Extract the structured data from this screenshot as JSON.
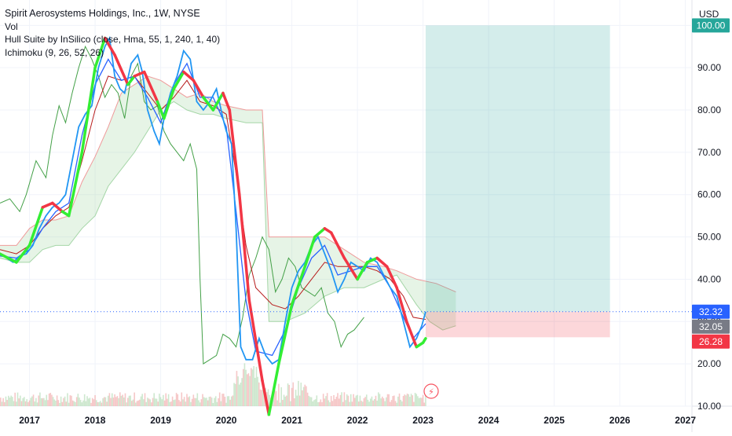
{
  "legend": {
    "title": "Spirit Aerosystems Holdings, Inc., 1W, NYSE",
    "volume": "Vol",
    "hull": "Hull Suite by InSilico (close, Hma, 55, 1, 240, 1, 40)",
    "ichimoku": "Ichimoku (9, 26, 52, 26)"
  },
  "chart_data": {
    "type": "line",
    "currency": "USD",
    "x_range": [
      2016.55,
      2027.1
    ],
    "y_range": [
      10,
      106
    ],
    "x_ticks": [
      "2017",
      "2018",
      "2019",
      "2020",
      "2021",
      "2022",
      "2023",
      "2024",
      "2025",
      "2026",
      "2027"
    ],
    "y_ticks": [
      10,
      20,
      30,
      40,
      50,
      60,
      70,
      80,
      90,
      100
    ],
    "y_tick_labels": [
      "10.00",
      "20.00",
      "30.00",
      "40.00",
      "50.00",
      "60.00",
      "70.00",
      "80.00",
      "90.00",
      "100.00"
    ],
    "colors": {
      "price": "#2196f3",
      "tenkan": "#2962ff",
      "kijun": "#b71c1c",
      "chikou": "#43a047",
      "hull_up": "#33ee33",
      "hull_down": "#f23645",
      "cloud_bull": "#a5d6a7",
      "cloud_bear": "#ef9a9a",
      "profit_zone": "#26a69a",
      "loss_zone": "#f23645",
      "label_green": "#26a69a",
      "label_blue": "#2962ff",
      "label_gray": "#787b86",
      "label_red": "#f23645"
    },
    "price": [
      [
        2016.55,
        46
      ],
      [
        2016.65,
        45
      ],
      [
        2016.75,
        44
      ],
      [
        2016.85,
        45.5
      ],
      [
        2016.95,
        46
      ],
      [
        2017.05,
        48
      ],
      [
        2017.15,
        52
      ],
      [
        2017.25,
        55
      ],
      [
        2017.35,
        57
      ],
      [
        2017.45,
        58
      ],
      [
        2017.55,
        60
      ],
      [
        2017.65,
        68
      ],
      [
        2017.75,
        76
      ],
      [
        2017.85,
        79
      ],
      [
        2017.95,
        81
      ],
      [
        2018.05,
        90
      ],
      [
        2018.15,
        95
      ],
      [
        2018.22,
        97
      ],
      [
        2018.3,
        88
      ],
      [
        2018.38,
        85
      ],
      [
        2018.45,
        84
      ],
      [
        2018.55,
        91
      ],
      [
        2018.65,
        93
      ],
      [
        2018.72,
        89
      ],
      [
        2018.8,
        80
      ],
      [
        2018.9,
        75
      ],
      [
        2018.98,
        72
      ],
      [
        2019.05,
        78
      ],
      [
        2019.15,
        84
      ],
      [
        2019.25,
        88
      ],
      [
        2019.35,
        94
      ],
      [
        2019.45,
        92
      ],
      [
        2019.55,
        82
      ],
      [
        2019.65,
        80
      ],
      [
        2019.75,
        82
      ],
      [
        2019.85,
        85
      ],
      [
        2019.95,
        78
      ],
      [
        2020.0,
        75
      ],
      [
        2020.08,
        72
      ],
      [
        2020.15,
        52
      ],
      [
        2020.22,
        24
      ],
      [
        2020.3,
        21
      ],
      [
        2020.4,
        21
      ],
      [
        2020.5,
        26
      ],
      [
        2020.6,
        22
      ],
      [
        2020.7,
        20
      ],
      [
        2020.8,
        21
      ],
      [
        2020.9,
        30
      ],
      [
        2021.0,
        38
      ],
      [
        2021.1,
        42
      ],
      [
        2021.2,
        44
      ],
      [
        2021.3,
        48
      ],
      [
        2021.4,
        50
      ],
      [
        2021.5,
        46
      ],
      [
        2021.6,
        42
      ],
      [
        2021.7,
        37
      ],
      [
        2021.8,
        40
      ],
      [
        2021.9,
        44
      ],
      [
        2022.0,
        43
      ],
      [
        2022.1,
        42
      ],
      [
        2022.2,
        45
      ],
      [
        2022.3,
        44
      ],
      [
        2022.4,
        41
      ],
      [
        2022.5,
        38
      ],
      [
        2022.6,
        36
      ],
      [
        2022.7,
        30
      ],
      [
        2022.8,
        24
      ],
      [
        2022.9,
        26
      ],
      [
        2022.98,
        29
      ],
      [
        2023.04,
        32.32
      ]
    ],
    "tenkan": [
      [
        2016.55,
        45.5
      ],
      [
        2016.8,
        45
      ],
      [
        2017.0,
        47
      ],
      [
        2017.2,
        52
      ],
      [
        2017.4,
        56
      ],
      [
        2017.6,
        58
      ],
      [
        2017.8,
        74
      ],
      [
        2018.0,
        86
      ],
      [
        2018.2,
        92
      ],
      [
        2018.4,
        87
      ],
      [
        2018.6,
        88
      ],
      [
        2018.8,
        83
      ],
      [
        2019.0,
        77
      ],
      [
        2019.2,
        86
      ],
      [
        2019.4,
        91
      ],
      [
        2019.6,
        83
      ],
      [
        2019.8,
        83
      ],
      [
        2020.0,
        76
      ],
      [
        2020.15,
        56
      ],
      [
        2020.3,
        35
      ],
      [
        2020.45,
        23
      ],
      [
        2020.7,
        22
      ],
      [
        2020.9,
        28
      ],
      [
        2021.1,
        38
      ],
      [
        2021.3,
        45
      ],
      [
        2021.5,
        48
      ],
      [
        2021.7,
        41
      ],
      [
        2021.9,
        42
      ],
      [
        2022.1,
        43
      ],
      [
        2022.3,
        43
      ],
      [
        2022.5,
        38
      ],
      [
        2022.7,
        31
      ],
      [
        2022.85,
        26
      ],
      [
        2023.04,
        29.5
      ]
    ],
    "kijun": [
      [
        2016.55,
        47
      ],
      [
        2016.8,
        46
      ],
      [
        2017.0,
        48
      ],
      [
        2017.2,
        52
      ],
      [
        2017.4,
        55
      ],
      [
        2017.6,
        57
      ],
      [
        2017.8,
        68
      ],
      [
        2018.0,
        80
      ],
      [
        2018.2,
        88
      ],
      [
        2018.4,
        87
      ],
      [
        2018.6,
        88
      ],
      [
        2018.8,
        84
      ],
      [
        2019.0,
        80
      ],
      [
        2019.2,
        83
      ],
      [
        2019.4,
        87
      ],
      [
        2019.6,
        82
      ],
      [
        2019.8,
        81
      ],
      [
        2020.0,
        79
      ],
      [
        2020.15,
        65
      ],
      [
        2020.3,
        48
      ],
      [
        2020.45,
        38
      ],
      [
        2020.7,
        34
      ],
      [
        2020.9,
        33
      ],
      [
        2021.1,
        36
      ],
      [
        2021.3,
        40
      ],
      [
        2021.5,
        44
      ],
      [
        2021.7,
        43
      ],
      [
        2021.9,
        43
      ],
      [
        2022.1,
        43
      ],
      [
        2022.3,
        42
      ],
      [
        2022.5,
        40
      ],
      [
        2022.7,
        36
      ],
      [
        2022.85,
        31
      ],
      [
        2023.04,
        30.5
      ]
    ],
    "chikou": [
      [
        2016.55,
        58
      ],
      [
        2016.7,
        59
      ],
      [
        2016.85,
        56
      ],
      [
        2016.95,
        60
      ],
      [
        2017.1,
        68
      ],
      [
        2017.25,
        64
      ],
      [
        2017.35,
        74
      ],
      [
        2017.45,
        81
      ],
      [
        2017.55,
        77
      ],
      [
        2017.65,
        84
      ],
      [
        2017.75,
        90
      ],
      [
        2017.85,
        95
      ],
      [
        2017.95,
        92
      ],
      [
        2018.05,
        88
      ],
      [
        2018.15,
        83
      ],
      [
        2018.25,
        86
      ],
      [
        2018.35,
        84
      ],
      [
        2018.45,
        78
      ],
      [
        2018.55,
        88
      ],
      [
        2018.65,
        91
      ],
      [
        2018.75,
        82
      ],
      [
        2018.85,
        80
      ],
      [
        2018.95,
        81
      ],
      [
        2019.05,
        75
      ],
      [
        2019.15,
        72
      ],
      [
        2019.25,
        70
      ],
      [
        2019.35,
        68
      ],
      [
        2019.45,
        72
      ],
      [
        2019.55,
        66
      ],
      [
        2019.6,
        40
      ],
      [
        2019.65,
        20
      ],
      [
        2019.75,
        21
      ],
      [
        2019.85,
        22
      ],
      [
        2019.95,
        27
      ],
      [
        2020.05,
        26
      ],
      [
        2020.15,
        24
      ],
      [
        2020.25,
        31
      ],
      [
        2020.35,
        41
      ],
      [
        2020.45,
        45
      ],
      [
        2020.55,
        50
      ],
      [
        2020.65,
        47
      ],
      [
        2020.75,
        37
      ],
      [
        2020.85,
        40
      ],
      [
        2020.95,
        45
      ],
      [
        2021.05,
        43
      ],
      [
        2021.15,
        38
      ],
      [
        2021.25,
        37
      ],
      [
        2021.35,
        36
      ],
      [
        2021.45,
        38
      ],
      [
        2021.55,
        32
      ],
      [
        2021.65,
        30
      ],
      [
        2021.75,
        24
      ],
      [
        2021.85,
        27
      ],
      [
        2021.95,
        28
      ],
      [
        2022.05,
        30
      ],
      [
        2022.1,
        31
      ]
    ],
    "cloud": {
      "upper": [
        [
          2016.55,
          48
        ],
        [
          2016.8,
          48
        ],
        [
          2017.0,
          52
        ],
        [
          2017.2,
          54
        ],
        [
          2017.4,
          54
        ],
        [
          2017.6,
          55
        ],
        [
          2017.8,
          63
        ],
        [
          2018.0,
          69
        ],
        [
          2018.2,
          76
        ],
        [
          2018.4,
          84
        ],
        [
          2018.6,
          86
        ],
        [
          2018.8,
          88
        ],
        [
          2019.0,
          87
        ],
        [
          2019.2,
          85
        ],
        [
          2019.4,
          83
        ],
        [
          2019.6,
          84
        ],
        [
          2019.8,
          82
        ],
        [
          2020.0,
          81
        ],
        [
          2020.3,
          80
        ],
        [
          2020.55,
          80
        ],
        [
          2020.65,
          50
        ],
        [
          2020.9,
          50
        ],
        [
          2021.2,
          50
        ],
        [
          2021.5,
          50
        ],
        [
          2021.8,
          47
        ],
        [
          2022.1,
          44
        ],
        [
          2022.4,
          43
        ],
        [
          2022.6,
          42
        ],
        [
          2022.9,
          40
        ],
        [
          2023.2,
          39
        ],
        [
          2023.5,
          37
        ]
      ],
      "lower": [
        [
          2016.55,
          45
        ],
        [
          2016.8,
          44
        ],
        [
          2017.0,
          44
        ],
        [
          2017.2,
          47
        ],
        [
          2017.4,
          48
        ],
        [
          2017.6,
          48
        ],
        [
          2017.8,
          52
        ],
        [
          2018.0,
          55
        ],
        [
          2018.2,
          62
        ],
        [
          2018.4,
          66
        ],
        [
          2018.6,
          70
        ],
        [
          2018.8,
          75
        ],
        [
          2019.0,
          80
        ],
        [
          2019.2,
          82
        ],
        [
          2019.4,
          80
        ],
        [
          2019.6,
          79
        ],
        [
          2019.8,
          79
        ],
        [
          2020.0,
          78
        ],
        [
          2020.3,
          77
        ],
        [
          2020.55,
          77
        ],
        [
          2020.65,
          30
        ],
        [
          2020.9,
          30
        ],
        [
          2021.2,
          32
        ],
        [
          2021.5,
          36
        ],
        [
          2021.8,
          38
        ],
        [
          2022.1,
          38
        ],
        [
          2022.4,
          40
        ],
        [
          2022.6,
          41
        ],
        [
          2022.9,
          34
        ],
        [
          2023.1,
          30
        ],
        [
          2023.3,
          28
        ],
        [
          2023.5,
          29
        ]
      ]
    },
    "hull": [
      [
        2016.55,
        46,
        "up"
      ],
      [
        2016.8,
        44,
        "up"
      ],
      [
        2017.0,
        48,
        "up"
      ],
      [
        2017.2,
        57,
        "up"
      ],
      [
        2017.35,
        58,
        "down"
      ],
      [
        2017.5,
        56,
        "down"
      ],
      [
        2017.6,
        55,
        "up"
      ],
      [
        2017.8,
        70,
        "up"
      ],
      [
        2018.0,
        90,
        "up"
      ],
      [
        2018.15,
        97,
        "up"
      ],
      [
        2018.3,
        93,
        "down"
      ],
      [
        2018.5,
        86,
        "down"
      ],
      [
        2018.6,
        88,
        "up"
      ],
      [
        2018.75,
        89,
        "down"
      ],
      [
        2018.95,
        82,
        "down"
      ],
      [
        2019.05,
        78,
        "up"
      ],
      [
        2019.2,
        85,
        "up"
      ],
      [
        2019.35,
        89,
        "up"
      ],
      [
        2019.5,
        87,
        "down"
      ],
      [
        2019.65,
        83,
        "down"
      ],
      [
        2019.8,
        80,
        "up"
      ],
      [
        2019.95,
        84,
        "up"
      ],
      [
        2020.05,
        80,
        "down"
      ],
      [
        2020.2,
        60,
        "down"
      ],
      [
        2020.35,
        35,
        "down"
      ],
      [
        2020.55,
        16,
        "down"
      ],
      [
        2020.65,
        8,
        "down"
      ],
      [
        2020.8,
        20,
        "up"
      ],
      [
        2021.0,
        34,
        "up"
      ],
      [
        2021.2,
        43,
        "up"
      ],
      [
        2021.35,
        50,
        "up"
      ],
      [
        2021.5,
        52,
        "up"
      ],
      [
        2021.6,
        51,
        "down"
      ],
      [
        2021.8,
        45,
        "down"
      ],
      [
        2022.0,
        40,
        "down"
      ],
      [
        2022.15,
        44,
        "up"
      ],
      [
        2022.3,
        45,
        "up"
      ],
      [
        2022.45,
        43,
        "down"
      ],
      [
        2022.6,
        38,
        "down"
      ],
      [
        2022.75,
        30,
        "down"
      ],
      [
        2022.9,
        24,
        "down"
      ],
      [
        2023.0,
        25,
        "up"
      ],
      [
        2023.04,
        26,
        "up"
      ]
    ],
    "volume_bars_from": 2016.55,
    "volume_bars_to": 2023.04,
    "risk_reward": {
      "x_start": 2023.04,
      "x_end": 2025.85,
      "entry": 32.32,
      "target": 100.0,
      "stop": 26.28
    },
    "price_labels": [
      {
        "text": "100.00",
        "value": 100.0,
        "color_key": "label_green"
      },
      {
        "text": "32.32",
        "value": 32.32,
        "color_key": "label_blue"
      },
      {
        "text": "32.05",
        "value": 32.05,
        "color_key": "label_gray"
      },
      {
        "text": "26.28",
        "value": 26.28,
        "color_key": "label_red"
      }
    ]
  }
}
